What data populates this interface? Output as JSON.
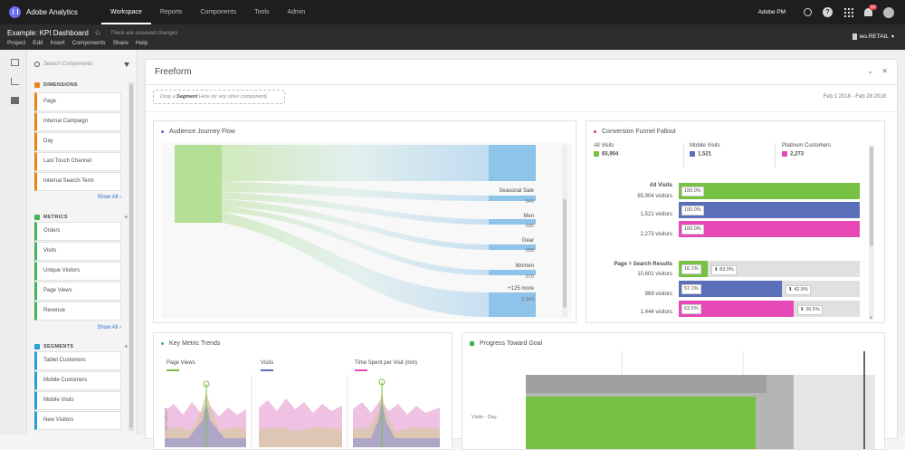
{
  "app": {
    "name": "Adobe Analytics",
    "nav": [
      "Workspace",
      "Reports",
      "Components",
      "Tools",
      "Admin"
    ],
    "active_nav": "Workspace",
    "org": "Adobe PM",
    "notif_count": "20"
  },
  "project": {
    "title": "Example: KPI Dashboard",
    "unsaved": "There are unsaved changes",
    "menus": [
      "Project",
      "Edit",
      "Insert",
      "Components",
      "Share",
      "Help"
    ],
    "report_suite": "wo.RETAIL"
  },
  "components": {
    "search_placeholder": "Search Components",
    "dimensions": {
      "header": "DIMENSIONS",
      "items": [
        "Page",
        "Internal Campaign",
        "Day",
        "Last Touch Channel",
        "Internal Search Term"
      ],
      "show_all": "Show All"
    },
    "metrics": {
      "header": "METRICS",
      "items": [
        "Orders",
        "Visits",
        "Unique Visitors",
        "Page Views",
        "Revenue"
      ],
      "show_all": "Show All"
    },
    "segments": {
      "header": "SEGMENTS",
      "items": [
        "Tablet Customers",
        "Mobile Customers",
        "Mobile Visits",
        "New Visitors"
      ]
    }
  },
  "panel": {
    "title": "Freeform",
    "drop_zone": {
      "prefix": "Drop a ",
      "bold": "Segment",
      "suffix": " Here (or any other component)"
    },
    "date_range": "Feb 1 2018 - Feb 28 2018"
  },
  "flow": {
    "title": "Audience Journey Flow",
    "nodes": [
      {
        "label": "Seasonal Sale",
        "value": "845"
      },
      {
        "label": "Men",
        "value": "695"
      },
      {
        "label": "Gear",
        "value": "658"
      },
      {
        "label": "Women",
        "value": "570"
      },
      {
        "label": "+125 more",
        "value": "2,943"
      }
    ]
  },
  "funnel": {
    "title": "Conversion Funnel Fallout",
    "segments": [
      {
        "name": "All Visits",
        "value": "65,904",
        "color": "#76c043"
      },
      {
        "name": "Mobile Visits",
        "value": "1,521",
        "color": "#5a6fb8"
      },
      {
        "name": "Platinum Customers",
        "value": "2,273",
        "color": "#e649b6"
      }
    ],
    "step1": {
      "name": "All Visits",
      "rows": [
        {
          "label": "65,904 visitors",
          "pct": "100.0%"
        },
        {
          "label": "1,521 visitors",
          "pct": "100.0%"
        },
        {
          "label": "2,273 visitors",
          "pct": "100.0%"
        }
      ]
    },
    "step2": {
      "name": "Page = Search Results",
      "rows": [
        {
          "label": "10,601 visitors",
          "pct": "16.1%",
          "drop": "83.9%",
          "fraction": 0.161
        },
        {
          "label": "869 visitors",
          "pct": "57.1%",
          "drop": "42.9%",
          "fraction": 0.571
        },
        {
          "label": "1,444 visitors",
          "pct": "63.5%",
          "drop": "36.5%",
          "fraction": 0.635
        }
      ]
    }
  },
  "trends": {
    "title": "Key Metric Trends",
    "metrics": [
      {
        "name": "Page Views",
        "color": "#76c043"
      },
      {
        "name": "Visits",
        "color": "#5a6fb8"
      },
      {
        "name": "Time Spent per Visit (min)",
        "color": "#e649b6"
      }
    ],
    "axis_label": "normalized"
  },
  "goal": {
    "title": "Progress Toward Goal",
    "row_label": "Visits - Day"
  }
}
